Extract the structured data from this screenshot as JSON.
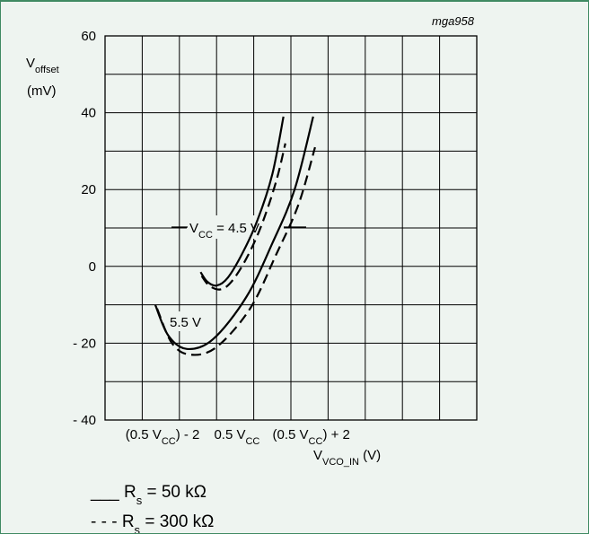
{
  "chart_data": {
    "type": "line",
    "figure_id": "mga958",
    "ylabel": {
      "main": "V",
      "sub": "offset",
      "unit": "(mV)"
    },
    "xlabel": {
      "main": "V",
      "sub": "VCO_IN",
      "unit": " (V)"
    },
    "ylim": [
      -40,
      60
    ],
    "xlim": [
      -3.5,
      6.5
    ],
    "grid": true,
    "y_ticks": [
      "60",
      "40",
      "20",
      "0",
      "- 20",
      "- 40"
    ],
    "x_ticks": [
      {
        "pre": "(0.5 V",
        "sub": "CC",
        "post": ") - 2"
      },
      {
        "pre": "0.5 V",
        "sub": "CC",
        "post": ""
      },
      {
        "pre": "(0.5 V",
        "sub": "CC",
        "post": ") + 2"
      }
    ],
    "x_tick_positions": [
      -2,
      0,
      2
    ],
    "annotations": [
      {
        "pre": "V",
        "sub": "CC",
        "post": " =  4.5 V"
      },
      {
        "pre": "5.5 V",
        "sub": "",
        "post": ""
      }
    ],
    "legend": [
      {
        "style": "solid",
        "prefix": "___",
        "label_pre": " R",
        "label_sub": "s",
        "label_post": " = 50 kΩ"
      },
      {
        "style": "dashed",
        "prefix": "- - -",
        "label_pre": " R",
        "label_sub": "s",
        "label_post": " = 300 kΩ"
      }
    ],
    "series": [
      {
        "condition": "4.5 V",
        "style": "solid",
        "x": [
          -0.93,
          -0.75,
          -0.5,
          -0.2,
          0.2,
          0.6,
          1.0,
          1.3
        ],
        "y": [
          -1.5,
          -4.0,
          -5.0,
          -3.0,
          3.5,
          12.0,
          24.0,
          39.0
        ]
      },
      {
        "condition": "4.5 V",
        "style": "dashed",
        "x": [
          -0.9,
          -0.7,
          -0.4,
          -0.1,
          0.3,
          0.7,
          1.1,
          1.35
        ],
        "y": [
          -2.5,
          -5.0,
          -6.0,
          -4.0,
          2.0,
          10.5,
          22.0,
          32.0
        ]
      },
      {
        "condition": "5.5 V",
        "style": "solid",
        "x": [
          -2.15,
          -1.8,
          -1.3,
          -0.6,
          0.3,
          1.0,
          1.6,
          2.1
        ],
        "y": [
          -10.0,
          -18.0,
          -21.5,
          -19.0,
          -8.0,
          6.0,
          20.0,
          39.0
        ]
      },
      {
        "condition": "5.5 V",
        "style": "dashed",
        "x": [
          -2.1,
          -1.7,
          -1.2,
          -0.5,
          0.4,
          1.1,
          1.7,
          2.15
        ],
        "y": [
          -11.0,
          -20.0,
          -23.0,
          -21.0,
          -11.0,
          3.0,
          16.0,
          31.0
        ]
      }
    ]
  }
}
